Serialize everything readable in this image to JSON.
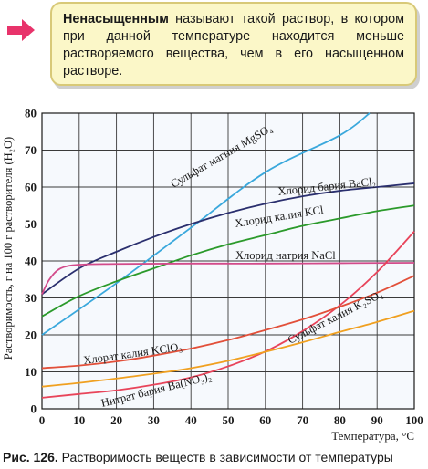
{
  "definition": {
    "term": "Ненасыщенным",
    "text": " называют такой раствор, в котором при данной температуре находится меньше растворяемого вещества, чем в его насыщенном растворе."
  },
  "figure": {
    "caption_label": "Рис. 126.",
    "caption_text": " Растворимость веществ в зависимости от температуры"
  },
  "chart_data": {
    "type": "line",
    "xlabel": "Температура, °C",
    "ylabel": "Растворимость, г на 100 г растворителя (H₂O)",
    "xlim": [
      0,
      100
    ],
    "ylim": [
      0,
      80
    ],
    "xticks": [
      0,
      10,
      20,
      30,
      40,
      50,
      60,
      70,
      80,
      90,
      100
    ],
    "yticks": [
      0,
      10,
      20,
      30,
      40,
      50,
      60,
      70,
      80
    ],
    "grid": true,
    "series": [
      {
        "name": "Сульфат магния MgSO₄",
        "color": "#3aa8dc",
        "x": [
          0,
          20,
          40,
          60,
          80,
          88
        ],
        "y": [
          20,
          34,
          49,
          64,
          74,
          80
        ]
      },
      {
        "name": "Хлорид бария BaCl₂",
        "color": "#2a2f6e",
        "x": [
          0,
          10,
          20,
          30,
          40,
          50,
          60,
          70,
          80,
          90,
          100
        ],
        "y": [
          31,
          38,
          42.5,
          46.5,
          50,
          53,
          55.5,
          57.5,
          59,
          60,
          61
        ]
      },
      {
        "name": "Хлорид калия KCl",
        "color": "#2b9a2b",
        "x": [
          0,
          10,
          20,
          30,
          40,
          50,
          60,
          70,
          80,
          90,
          100
        ],
        "y": [
          25,
          30.5,
          34.5,
          38,
          41.5,
          44.5,
          47,
          49.5,
          51.5,
          53.5,
          55
        ]
      },
      {
        "name": "Хлорид натрия NaCl",
        "color": "#d24b8a",
        "x": [
          0,
          2,
          5,
          10,
          20,
          40,
          60,
          80,
          100
        ],
        "y": [
          31,
          35,
          38,
          39,
          39.2,
          39.3,
          39.3,
          39.4,
          39.5
        ]
      },
      {
        "name": "Хлорат калия KClO₃",
        "color": "#e8445a",
        "x": [
          0,
          10,
          20,
          30,
          40,
          50,
          60,
          70,
          80,
          90,
          100
        ],
        "y": [
          3,
          4,
          5,
          6.5,
          8.5,
          11.5,
          15.5,
          21,
          28,
          37,
          48
        ]
      },
      {
        "name": "Сульфат калия K₂SO₄",
        "color": "#e2503a",
        "x": [
          0,
          10,
          20,
          30,
          40,
          50,
          60,
          70,
          80,
          90,
          100
        ],
        "y": [
          11,
          11.7,
          12.8,
          14.4,
          16.3,
          18.6,
          21.3,
          24.2,
          27.6,
          31.4,
          36
        ]
      },
      {
        "name": "Нитрат бария Ba(NO₃)₂",
        "color": "#f0a020",
        "x": [
          0,
          10,
          20,
          30,
          40,
          50,
          60,
          70,
          80,
          90,
          100
        ],
        "y": [
          6,
          7,
          8.2,
          9.5,
          11,
          13,
          15.4,
          18,
          20.8,
          23.5,
          26.5
        ]
      }
    ],
    "annotations": [
      {
        "text": "Сульфат магния MgSO₄",
        "series": 0
      },
      {
        "text": "Хлорид бария BaCl₂",
        "series": 1
      },
      {
        "text": "Хлорид калия KCl",
        "series": 2
      },
      {
        "text": "Хлорид натрия NaCl",
        "series": 3
      },
      {
        "text": "Хлорат калия KClO₃",
        "series": 4
      },
      {
        "text": "Сульфат калия K₂SO₄",
        "series": 5
      },
      {
        "text": "Нитрат бария Ba(NO₃)₂",
        "series": 6
      }
    ]
  }
}
